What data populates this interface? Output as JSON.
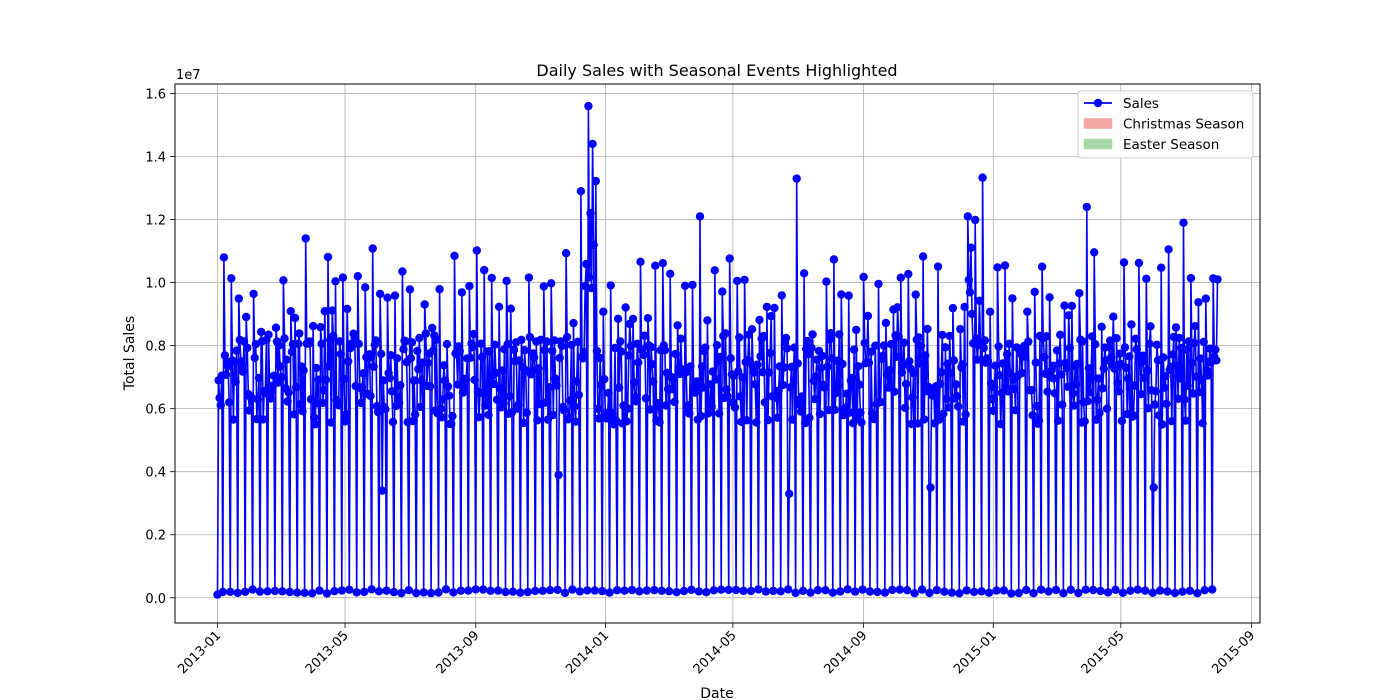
{
  "chart_data": {
    "type": "line",
    "title": "Daily Sales with Seasonal Events Highlighted",
    "xlabel": "Date",
    "ylabel": "Total Sales",
    "y_offset_label": "1e7",
    "xlim": [
      "2012-11-22",
      "2015-09-09"
    ],
    "ylim": [
      -800000,
      16300000
    ],
    "grid": true,
    "legend_position": "top-right",
    "x_ticks": [
      "2013-01",
      "2013-05",
      "2013-09",
      "2014-01",
      "2014-05",
      "2014-09",
      "2015-01",
      "2015-05",
      "2015-09"
    ],
    "y_ticks": [
      {
        "value": 0,
        "label": "0.0"
      },
      {
        "value": 2000000,
        "label": "0.2"
      },
      {
        "value": 4000000,
        "label": "0.4"
      },
      {
        "value": 6000000,
        "label": "0.6"
      },
      {
        "value": 8000000,
        "label": "0.8"
      },
      {
        "value": 10000000,
        "label": "1.0"
      },
      {
        "value": 12000000,
        "label": "1.2"
      },
      {
        "value": 14000000,
        "label": "1.4"
      },
      {
        "value": 16000000,
        "label": "1.6"
      }
    ],
    "date_range": [
      "2013-01-01",
      "2015-07-31"
    ],
    "legend": [
      {
        "label": "Sales",
        "kind": "line-marker",
        "color": "#0000ff"
      },
      {
        "label": "Christmas Season",
        "kind": "patch",
        "color": "#f4a6a6"
      },
      {
        "label": "Easter Season",
        "kind": "patch",
        "color": "#a6d9a6"
      }
    ],
    "series": [
      {
        "name": "Sales",
        "color": "#0000ff",
        "marker": "circle",
        "pattern": "Weekly: near-zero on Sundays (about 100,000-250,000), 5.5M-10.5M on other days, with peaks up to 15.6M in December 2013",
        "highlighted_points": [
          {
            "x": "2013-01-01",
            "y": 100000
          },
          {
            "x": "2013-01-02",
            "y": 6900000
          },
          {
            "x": "2013-01-07",
            "y": 10800000
          },
          {
            "x": "2013-03-25",
            "y": 11400000
          },
          {
            "x": "2013-06-05",
            "y": 3400000
          },
          {
            "x": "2013-11-18",
            "y": 3900000
          },
          {
            "x": "2013-12-09",
            "y": 12900000
          },
          {
            "x": "2013-12-16",
            "y": 15600000
          },
          {
            "x": "2013-12-18",
            "y": 12200000
          },
          {
            "x": "2013-12-20",
            "y": 14400000
          },
          {
            "x": "2014-03-31",
            "y": 12100000
          },
          {
            "x": "2014-06-23",
            "y": 3300000
          },
          {
            "x": "2014-06-30",
            "y": 13300000
          },
          {
            "x": "2014-11-03",
            "y": 3500000
          },
          {
            "x": "2014-12-08",
            "y": 12100000
          },
          {
            "x": "2015-03-30",
            "y": 12400000
          },
          {
            "x": "2015-06-01",
            "y": 3500000
          },
          {
            "x": "2015-06-29",
            "y": 11900000
          },
          {
            "x": "2015-07-31",
            "y": 10100000
          }
        ]
      }
    ]
  }
}
